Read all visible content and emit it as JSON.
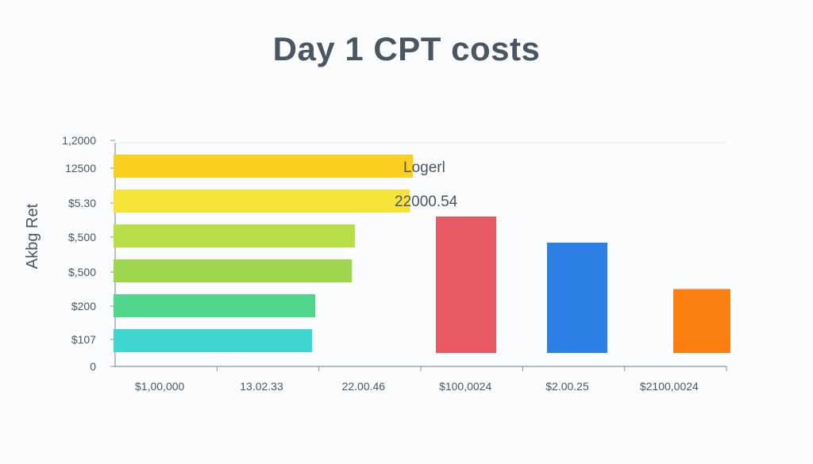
{
  "title": "Day 1 CPT costs",
  "chart_data": {
    "type": "bar",
    "title": "Day 1 CPT costs",
    "ylabel": "Akbg Ret",
    "xlabel": "",
    "grid": false,
    "legend_position": "upper-center",
    "legend_entries": [
      "Logerl",
      "22000.54"
    ],
    "y_tick_labels": [
      "1,2000",
      "12500",
      "$5.30",
      "$,500",
      "$,500",
      "$200",
      "$107",
      "0"
    ],
    "x_tick_labels": [
      "$1,00,000",
      "13.02.33",
      "22.00.46",
      "$100,0024",
      "$2.00.25",
      "$2100,0024"
    ],
    "horizontal_bars": [
      {
        "row": 1,
        "value": 0.49,
        "color": "#fbcf1f"
      },
      {
        "row": 2,
        "value": 0.485,
        "color": "#f5e33a"
      },
      {
        "row": 3,
        "value": 0.395,
        "color": "#b9df48"
      },
      {
        "row": 4,
        "value": 0.39,
        "color": "#9ed64e"
      },
      {
        "row": 5,
        "value": 0.33,
        "color": "#4fd68c"
      },
      {
        "row": 6,
        "value": 0.325,
        "color": "#3dd6d0"
      }
    ],
    "vertical_bars": [
      {
        "value": 0.47,
        "color": "#ea5a64"
      },
      {
        "value": 0.38,
        "color": "#2c7fe3"
      },
      {
        "value": 0.22,
        "color": "#fa7f10"
      }
    ]
  }
}
